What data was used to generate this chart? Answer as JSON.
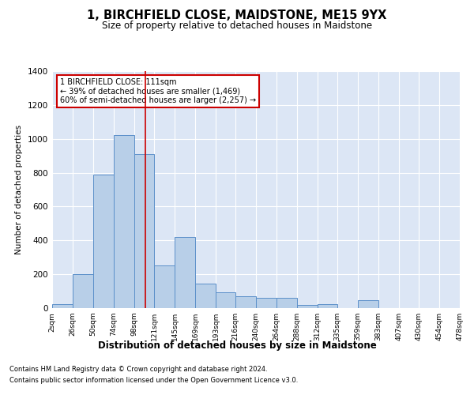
{
  "title": "1, BIRCHFIELD CLOSE, MAIDSTONE, ME15 9YX",
  "subtitle": "Size of property relative to detached houses in Maidstone",
  "xlabel": "Distribution of detached houses by size in Maidstone",
  "ylabel": "Number of detached properties",
  "footnote1": "Contains HM Land Registry data © Crown copyright and database right 2024.",
  "footnote2": "Contains public sector information licensed under the Open Government Licence v3.0.",
  "bar_color": "#b8cfe8",
  "bar_edge_color": "#5b8fc9",
  "background_color": "#dce6f5",
  "annotation_box_color": "#ffffff",
  "annotation_border_color": "#cc0000",
  "vline_color": "#cc0000",
  "property_sqm": 111,
  "annotation_line1": "1 BIRCHFIELD CLOSE: 111sqm",
  "annotation_line2": "← 39% of detached houses are smaller (1,469)",
  "annotation_line3": "60% of semi-detached houses are larger (2,257) →",
  "bin_edges": [
    2,
    26,
    50,
    74,
    98,
    121,
    145,
    169,
    193,
    216,
    240,
    264,
    288,
    312,
    335,
    359,
    383,
    407,
    430,
    454,
    478
  ],
  "bin_counts": [
    25,
    200,
    790,
    1020,
    910,
    250,
    420,
    145,
    95,
    70,
    60,
    60,
    20,
    25,
    0,
    45,
    0,
    0,
    0,
    0
  ],
  "ylim": [
    0,
    1400
  ],
  "yticks": [
    0,
    200,
    400,
    600,
    800,
    1000,
    1200,
    1400
  ]
}
